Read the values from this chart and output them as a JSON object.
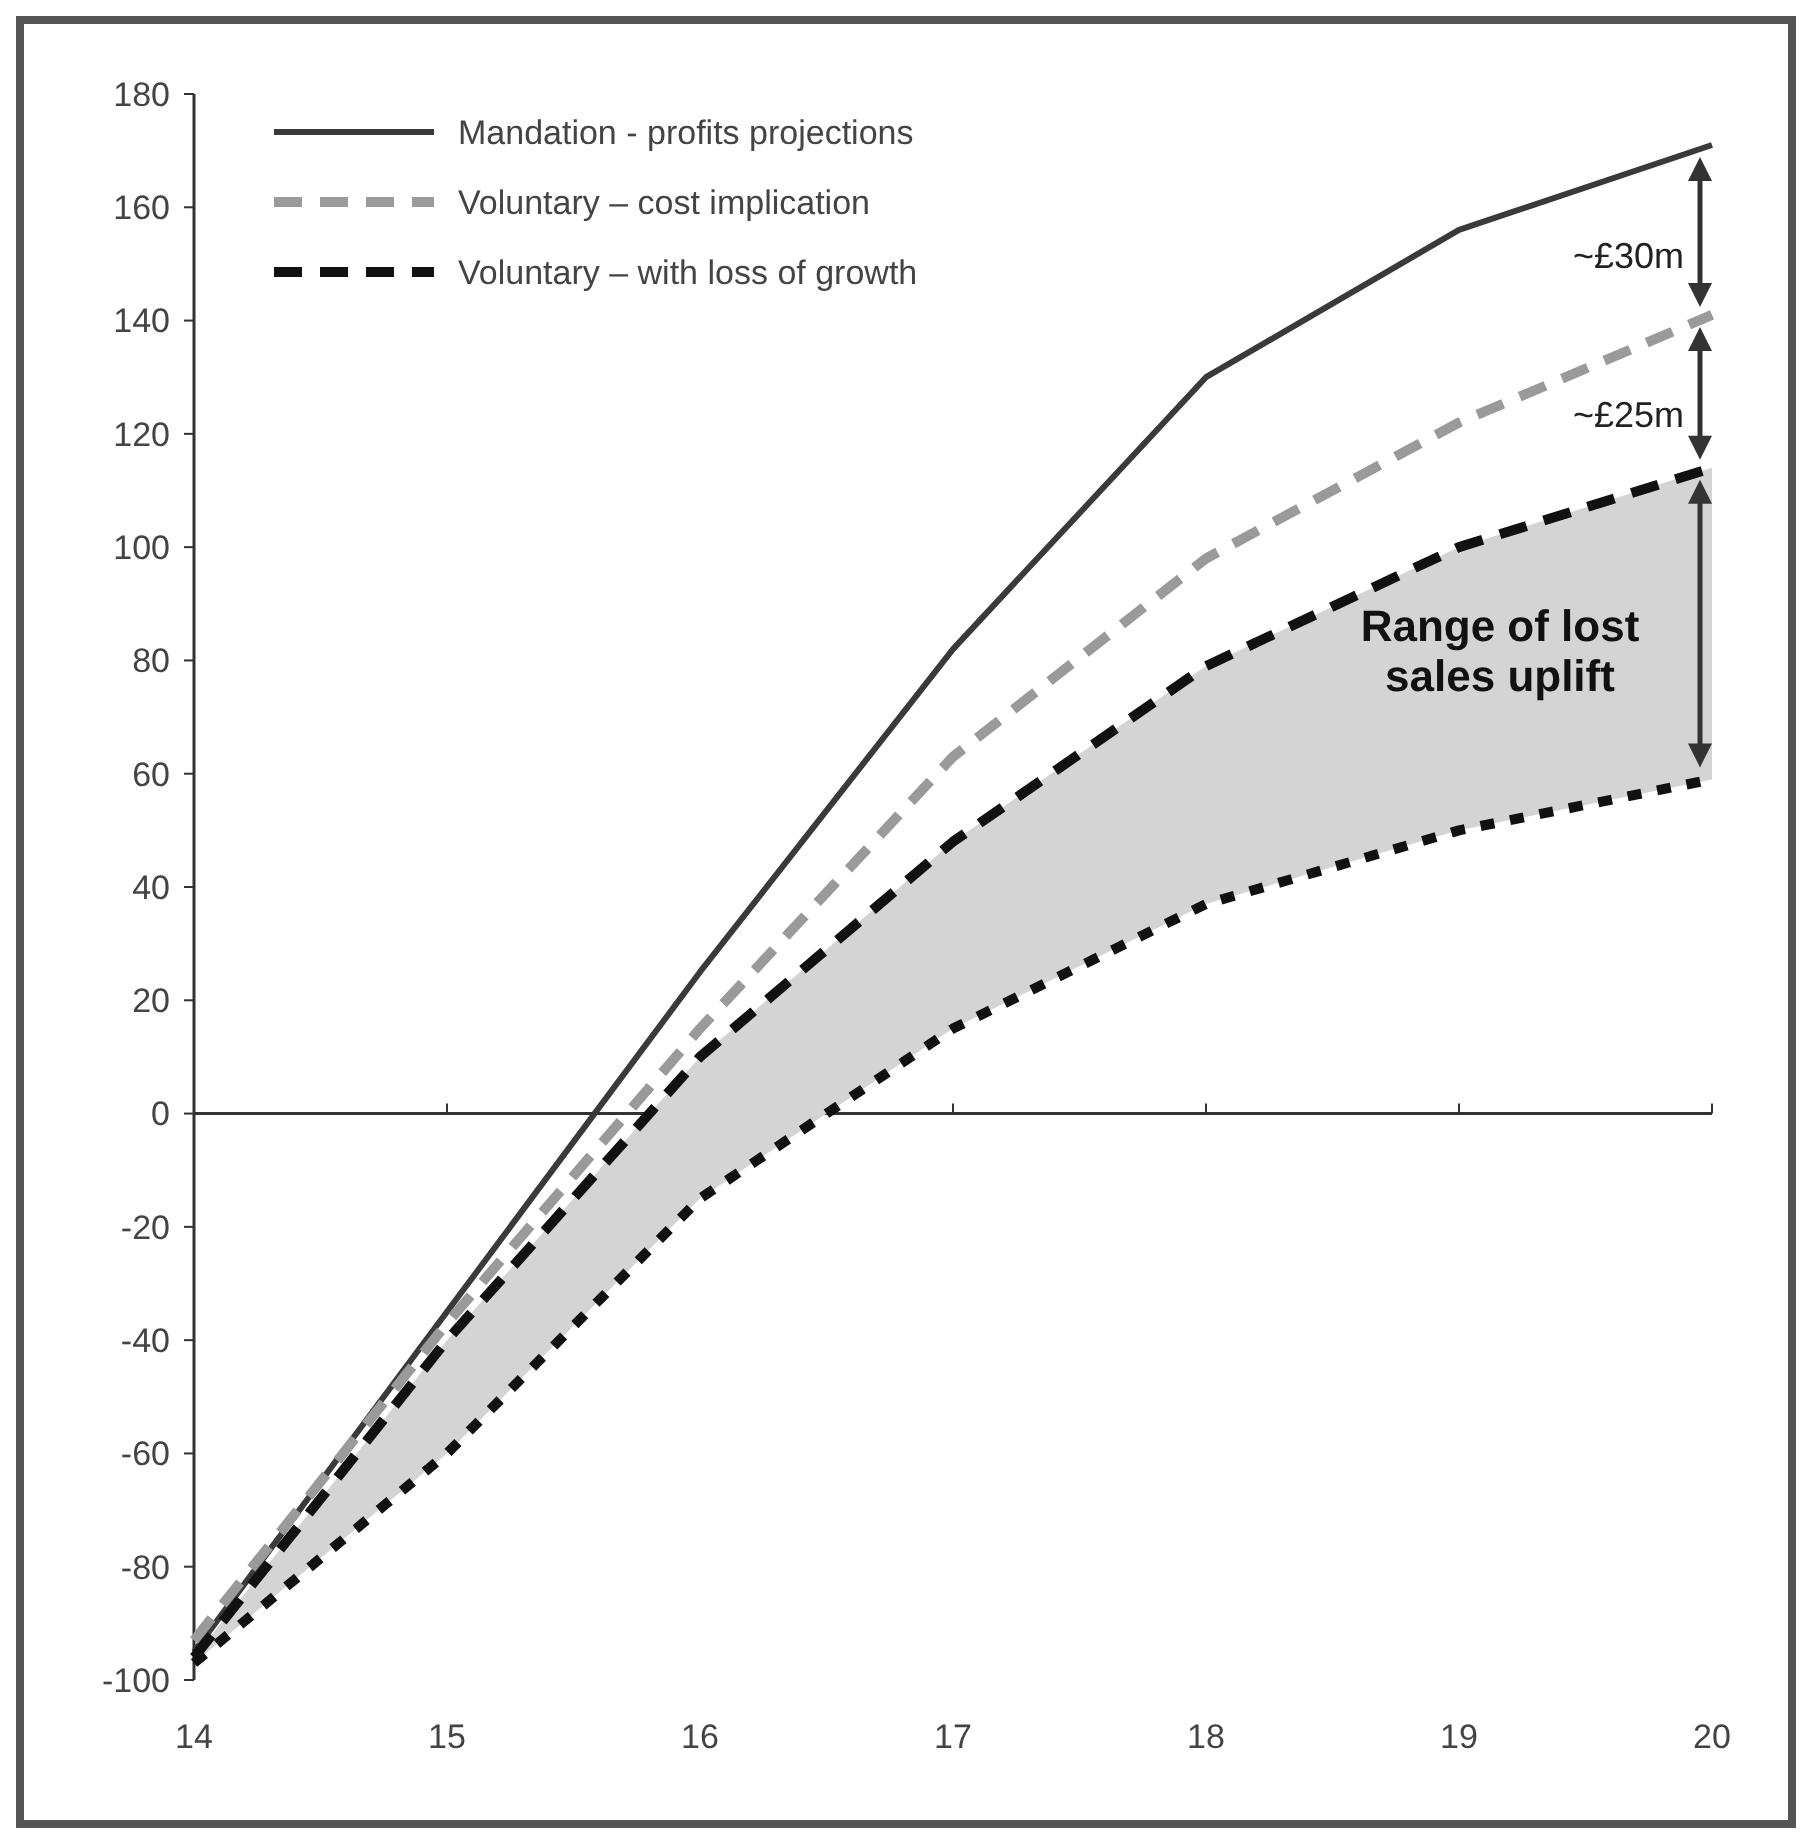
{
  "chart_data": {
    "type": "line",
    "x": [
      14,
      15,
      16,
      17,
      18,
      19,
      20
    ],
    "series": [
      {
        "name": "Mandation - profits projections",
        "color": "#3a3a3a",
        "line_style": "solid",
        "values": [
          -95,
          -35,
          25,
          82,
          130,
          156,
          171
        ]
      },
      {
        "name": "Voluntary – cost implication",
        "color": "#9a9a9a",
        "line_style": "dashed",
        "values": [
          -93,
          -37,
          15,
          63,
          98,
          122,
          141
        ]
      },
      {
        "name": "Voluntary – with loss of growth",
        "color": "#111111",
        "line_style": "dashed",
        "values": [
          -96,
          -40,
          10,
          48,
          79,
          100,
          114
        ],
        "lower": [
          -97,
          -60,
          -15,
          15,
          37,
          50,
          59
        ],
        "upper": [
          -96,
          -40,
          10,
          48,
          79,
          100,
          114
        ]
      },
      {
        "color": "#111111",
        "line_style": "dotted",
        "values": [
          -97,
          -60,
          -15,
          15,
          37,
          50,
          59
        ]
      }
    ],
    "xlim": [
      14,
      20
    ],
    "ylim": [
      -100,
      180
    ],
    "xticks": [
      14,
      15,
      16,
      17,
      18,
      19,
      20
    ],
    "yticks": [
      -100,
      -80,
      -60,
      -40,
      -20,
      0,
      20,
      40,
      60,
      80,
      100,
      120,
      140,
      160,
      180
    ],
    "legend": "top left",
    "annotations": [
      "~£30m",
      "~£25m",
      "Range of lost sales uplift"
    ]
  }
}
